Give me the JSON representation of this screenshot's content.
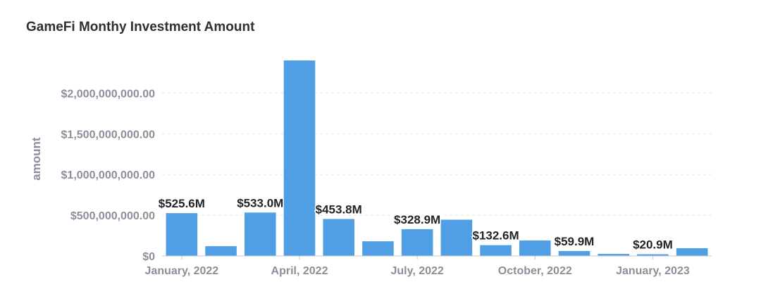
{
  "chart_data": {
    "type": "bar",
    "title": "GameFi Monthy Investment Amount",
    "xlabel": "",
    "ylabel": "amount",
    "ylim": [
      0,
      2400000000
    ],
    "yticks": [
      0,
      500000000,
      1000000000,
      1500000000,
      2000000000
    ],
    "ytick_labels": [
      "$0",
      "$500,000,000.00",
      "$1,000,000,000.00",
      "$1,500,000,000.00",
      "$2,000,000,000.00"
    ],
    "xtick_labels": [
      {
        "index": 0,
        "label": "January, 2022"
      },
      {
        "index": 3,
        "label": "April, 2022"
      },
      {
        "index": 6,
        "label": "July, 2022"
      },
      {
        "index": 9,
        "label": "October, 2022"
      },
      {
        "index": 12,
        "label": "January, 2023"
      }
    ],
    "grid": true,
    "bar_color": "#509ee3",
    "values": [
      525600000,
      120000000,
      533000000,
      2400000000,
      453800000,
      180000000,
      328900000,
      445000000,
      132600000,
      190000000,
      59900000,
      25000000,
      20900000,
      95000000
    ],
    "data_labels": [
      {
        "index": 0,
        "label": "$525.6M"
      },
      {
        "index": 2,
        "label": "$533.0M"
      },
      {
        "index": 4,
        "label": "$453.8M"
      },
      {
        "index": 6,
        "label": "$328.9M"
      },
      {
        "index": 8,
        "label": "$132.6M"
      },
      {
        "index": 10,
        "label": "$59.9M"
      },
      {
        "index": 12,
        "label": "$20.9M"
      }
    ]
  }
}
